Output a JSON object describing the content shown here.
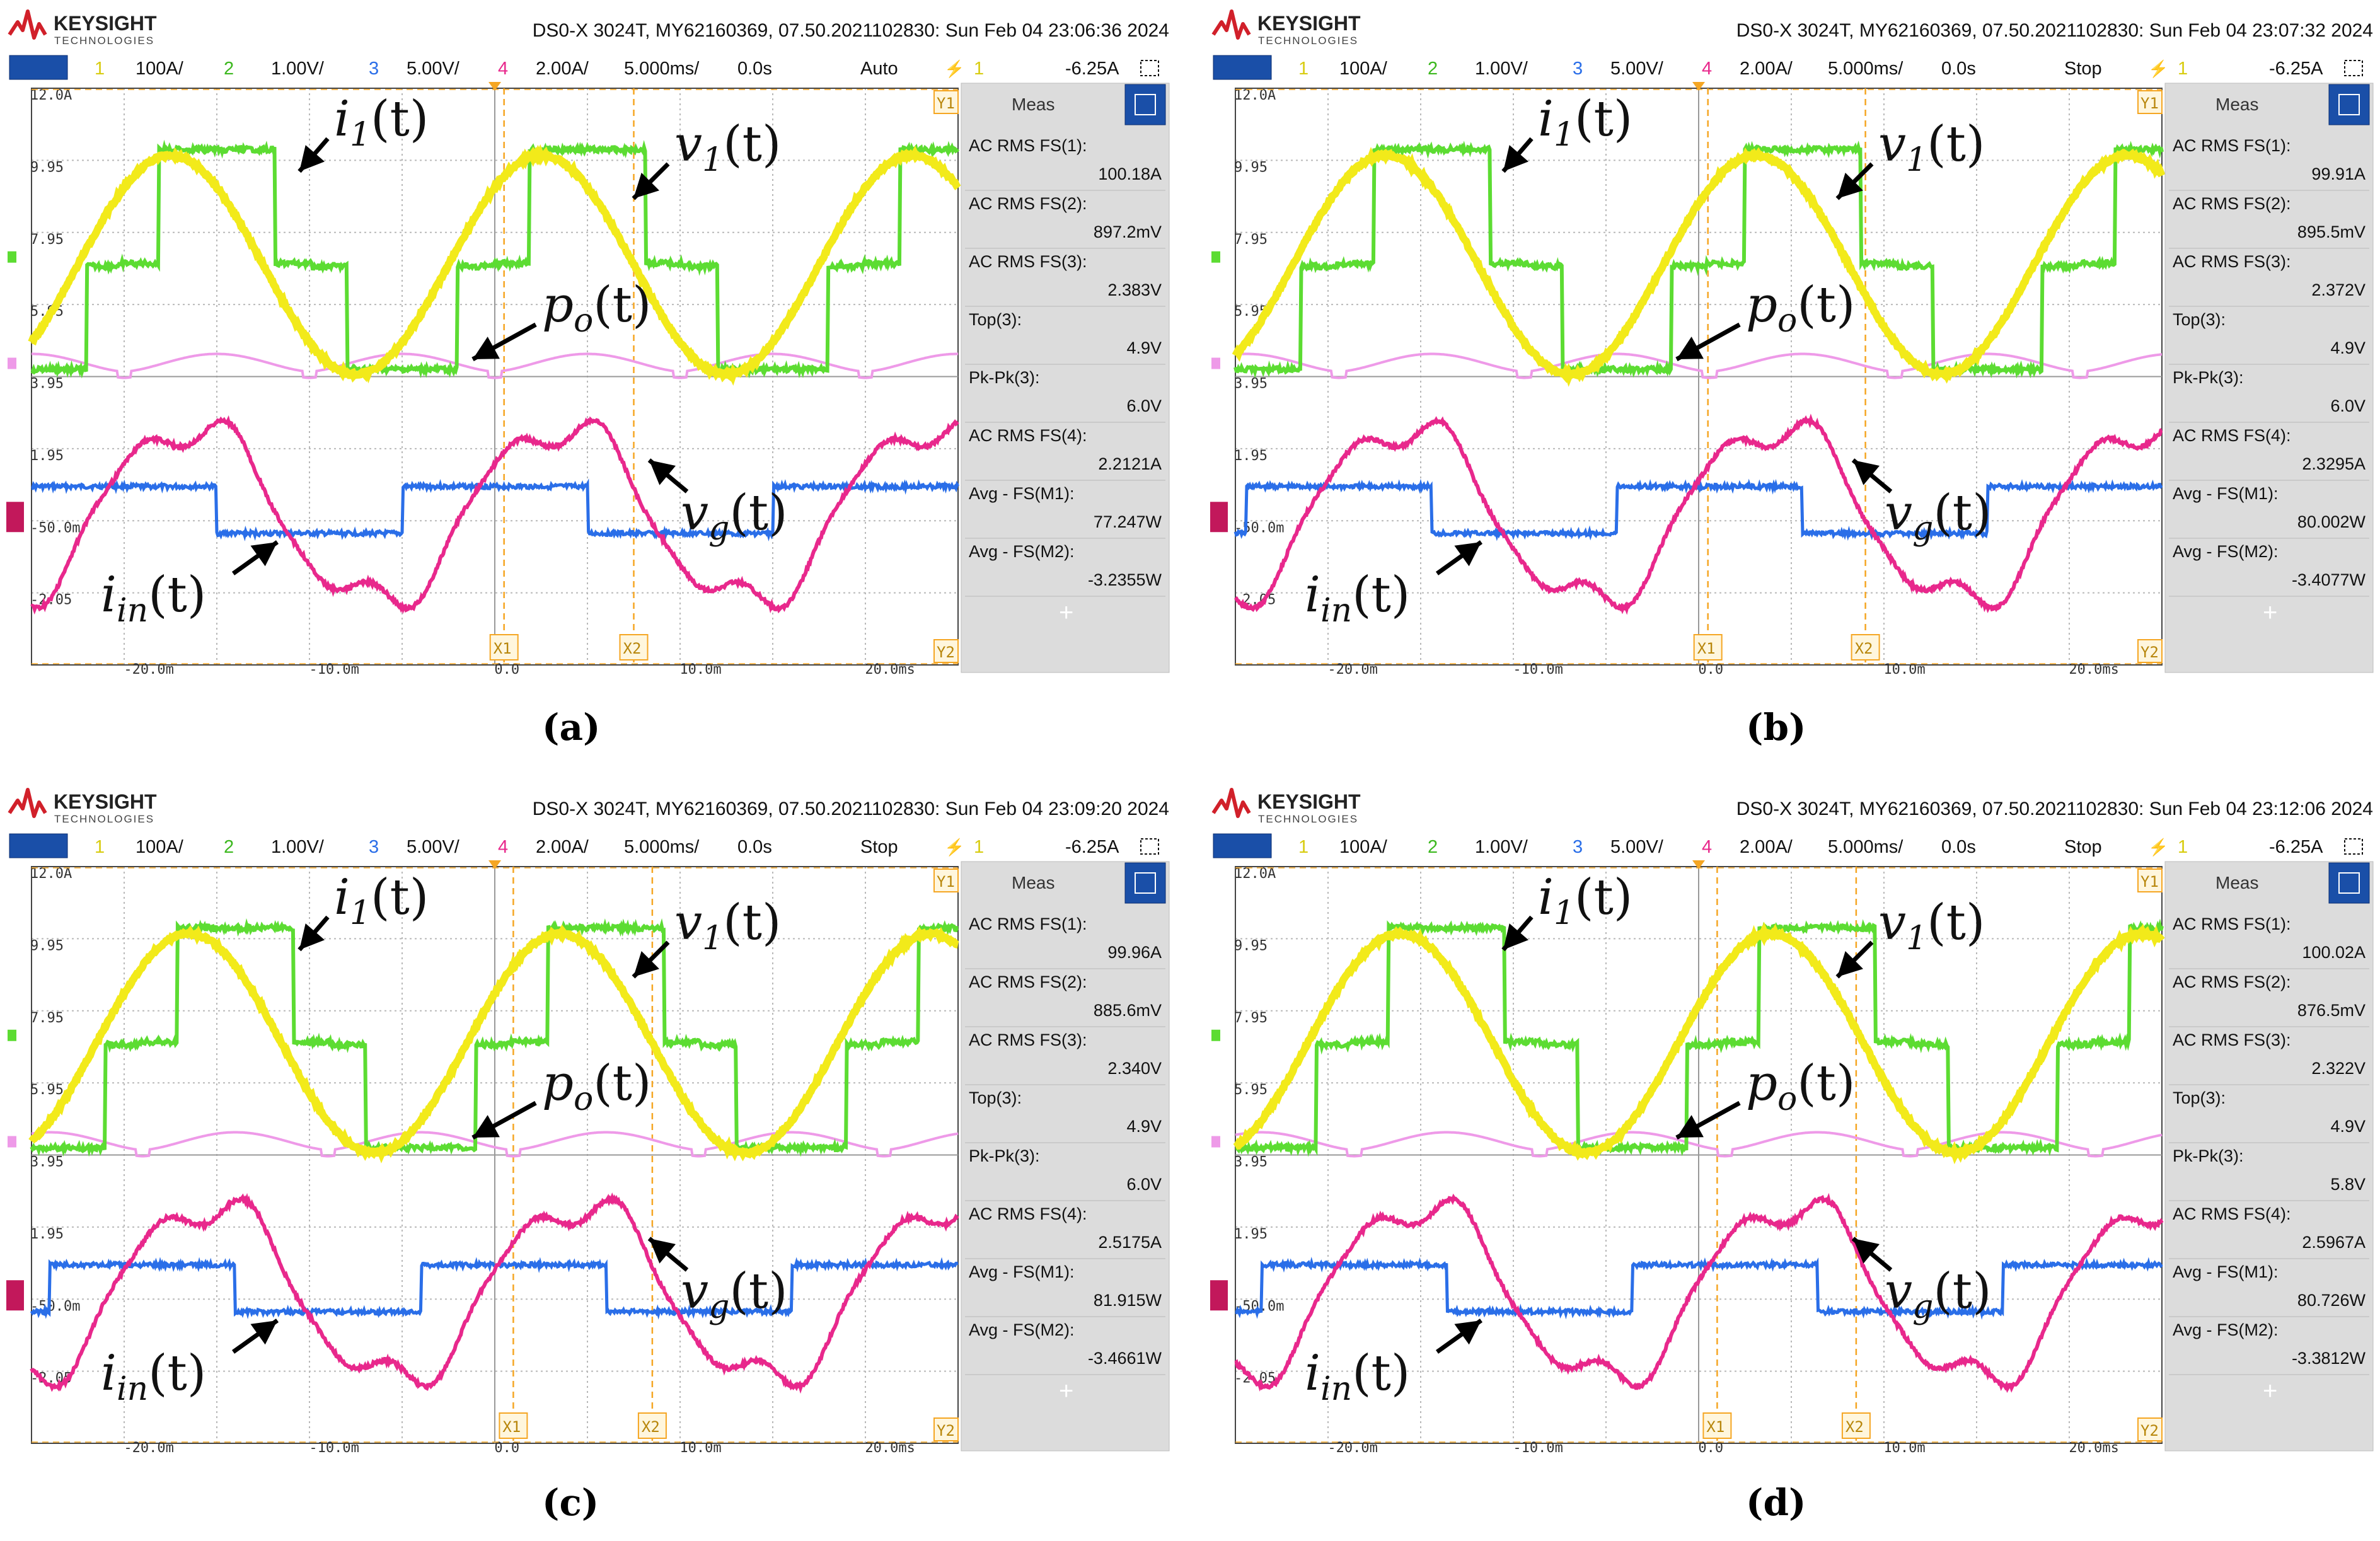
{
  "figure": {
    "brand": "KEYSIGHT",
    "brand_sub": "TECHNOLOGIES",
    "channels": {
      "ch1": "100A/",
      "ch2": "1.00V/",
      "ch3": "5.00V/",
      "ch4": "2.00A/"
    },
    "timebase": "5.000ms/",
    "delay": "0.0s",
    "trigger_level": "-6.25A",
    "y_labels": [
      "12.0A",
      "9.95",
      "7.95",
      "5.95",
      "3.95",
      "1.95",
      "-50.0m",
      "-2.05"
    ],
    "x_labels": [
      "-20.0m",
      "-10.0m",
      "0.0",
      "10.0m",
      "20.0ms"
    ],
    "cursor_labels": [
      "X1",
      "X2"
    ],
    "marker_labels": [
      "Y1",
      "Y2"
    ],
    "meas_title": "Meas",
    "meas_labels": [
      "AC RMS FS(1):",
      "AC RMS FS(2):",
      "AC RMS FS(3):",
      "Top(3):",
      "Pk-Pk(3):",
      "AC RMS FS(4):",
      "Avg - FS(M1):",
      "Avg - FS(M2):"
    ],
    "meas_plus": "+",
    "annotations": {
      "i1": "i1(t)",
      "v1": "v1(t)",
      "po": "po(t)",
      "vg": "vg(t)",
      "iin": "iin(t)"
    }
  },
  "panels": [
    {
      "caption": "(a)",
      "header": "DS0-X 3024T, MY62160369, 07.50.2021102830: Sun Feb 04 23:06:36 2024",
      "mode": "Auto",
      "meas_values": [
        "100.18A",
        "897.2mV",
        "2.383V",
        "4.9V",
        "6.0V",
        "2.2121A",
        "77.247W",
        "-3.2355W"
      ]
    },
    {
      "caption": "(b)",
      "header": "DS0-X 3024T, MY62160369, 07.50.2021102830: Sun Feb 04 23:07:32 2024",
      "mode": "Stop",
      "meas_values": [
        "99.91A",
        "895.5mV",
        "2.372V",
        "4.9V",
        "6.0V",
        "2.3295A",
        "80.002W",
        "-3.4077W"
      ]
    },
    {
      "caption": "(c)",
      "header": "DS0-X 3024T, MY62160369, 07.50.2021102830: Sun Feb 04 23:09:20 2024",
      "mode": "Stop",
      "meas_values": [
        "99.96A",
        "885.6mV",
        "2.340V",
        "4.9V",
        "6.0V",
        "2.5175A",
        "81.915W",
        "-3.4661W"
      ]
    },
    {
      "caption": "(d)",
      "header": "DS0-X 3024T, MY62160369, 07.50.2021102830: Sun Feb 04 23:12:06 2024",
      "mode": "Stop",
      "meas_values": [
        "100.02A",
        "876.5mV",
        "2.322V",
        "4.9V",
        "5.8V",
        "2.5967A",
        "80.726W",
        "-3.3812W"
      ]
    }
  ],
  "chart_data": [
    {
      "type": "line",
      "title": "(a)",
      "xlim_ms": [
        -25,
        25
      ],
      "cursors_ms": [
        0.5,
        7.5
      ],
      "series": [
        {
          "name": "i1(t)",
          "channel": 1,
          "color": "#f2ea1a",
          "shape": "sine",
          "period_ms": 20,
          "peak_div": 3.0,
          "center_div_from_top": 2.45
        },
        {
          "name": "v1(t)",
          "channel": 2,
          "color": "#5cdc32",
          "shape": "three-level-stepped",
          "period_ms": 20
        },
        {
          "name": "vg(t)",
          "channel": 3,
          "color": "#2a6ee8",
          "shape": "square",
          "period_ms": 20,
          "duty": 0.5
        },
        {
          "name": "iin(t)",
          "channel": 4,
          "color": "#e8288c",
          "shape": "rectified-distorted",
          "period_ms": 20
        },
        {
          "name": "po(t)",
          "channel": "M1",
          "color": "#ee9ae8",
          "shape": "double-frequency-ripple",
          "period_ms": 10
        }
      ]
    },
    {
      "type": "line",
      "title": "(b)",
      "xlim_ms": [
        -25,
        25
      ],
      "cursors_ms": [
        0.5,
        9.0
      ],
      "series": [
        {
          "name": "i1(t)",
          "channel": 1,
          "color": "#f2ea1a",
          "shape": "sine",
          "period_ms": 20
        },
        {
          "name": "v1(t)",
          "channel": 2,
          "color": "#5cdc32",
          "shape": "three-level-stepped",
          "period_ms": 20
        },
        {
          "name": "vg(t)",
          "channel": 3,
          "color": "#2a6ee8",
          "shape": "square",
          "period_ms": 20
        },
        {
          "name": "iin(t)",
          "channel": 4,
          "color": "#e8288c",
          "shape": "rectified-distorted",
          "period_ms": 20
        },
        {
          "name": "po(t)",
          "channel": "M1",
          "color": "#ee9ae8",
          "shape": "double-frequency-ripple",
          "period_ms": 10
        }
      ]
    },
    {
      "type": "line",
      "title": "(c)",
      "xlim_ms": [
        -25,
        25
      ],
      "cursors_ms": [
        1.0,
        8.5
      ],
      "series": [
        {
          "name": "i1(t)",
          "channel": 1,
          "color": "#f2ea1a",
          "shape": "sine",
          "period_ms": 20
        },
        {
          "name": "v1(t)",
          "channel": 2,
          "color": "#5cdc32",
          "shape": "three-level-stepped",
          "period_ms": 20
        },
        {
          "name": "vg(t)",
          "channel": 3,
          "color": "#2a6ee8",
          "shape": "square",
          "period_ms": 20
        },
        {
          "name": "iin(t)",
          "channel": 4,
          "color": "#e8288c",
          "shape": "rectified-distorted",
          "period_ms": 20
        },
        {
          "name": "po(t)",
          "channel": "M1",
          "color": "#ee9ae8",
          "shape": "double-frequency-ripple",
          "period_ms": 10
        }
      ]
    },
    {
      "type": "line",
      "title": "(d)",
      "xlim_ms": [
        -25,
        25
      ],
      "cursors_ms": [
        1.0,
        8.5
      ],
      "series": [
        {
          "name": "i1(t)",
          "channel": 1,
          "color": "#f2ea1a",
          "shape": "sine",
          "period_ms": 20
        },
        {
          "name": "v1(t)",
          "channel": 2,
          "color": "#5cdc32",
          "shape": "three-level-stepped",
          "period_ms": 20
        },
        {
          "name": "vg(t)",
          "channel": 3,
          "color": "#2a6ee8",
          "shape": "square",
          "period_ms": 20
        },
        {
          "name": "iin(t)",
          "channel": 4,
          "color": "#e8288c",
          "shape": "rectified-distorted",
          "period_ms": 20
        },
        {
          "name": "po(t)",
          "channel": "M1",
          "color": "#ee9ae8",
          "shape": "double-frequency-ripple",
          "period_ms": 10
        }
      ]
    }
  ]
}
